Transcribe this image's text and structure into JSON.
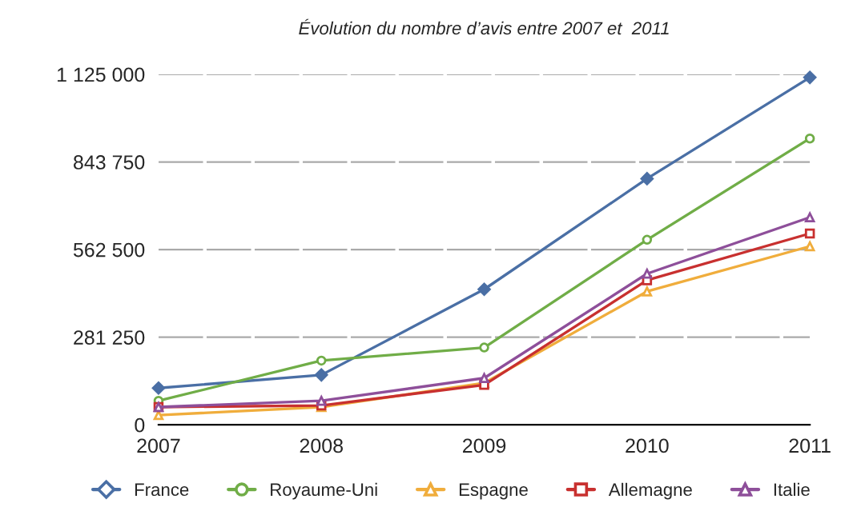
{
  "chart_data": {
    "type": "line",
    "title": "Évolution du nombre d’avis entre 2007 et  2011",
    "categories": [
      "2007",
      "2008",
      "2009",
      "2010",
      "2011"
    ],
    "series": [
      {
        "name": "France",
        "color": "#4a6fa5",
        "marker": "diamond",
        "values": [
          118000,
          160000,
          435000,
          790000,
          1115000
        ]
      },
      {
        "name": "Royaume-Uni",
        "color": "#70ad47",
        "marker": "circle",
        "values": [
          77000,
          206000,
          248000,
          594000,
          919000
        ]
      },
      {
        "name": "Espagne",
        "color": "#f0ad3c",
        "marker": "triangle",
        "values": [
          31000,
          57000,
          134000,
          428000,
          573000
        ]
      },
      {
        "name": "Allemagne",
        "color": "#c8302f",
        "marker": "square",
        "values": [
          57000,
          62000,
          128000,
          464000,
          614000
        ]
      },
      {
        "name": "Italie",
        "color": "#8e4f9a",
        "marker": "triangle",
        "values": [
          57000,
          77000,
          150000,
          485000,
          666000
        ]
      }
    ],
    "ylim": [
      0,
      1125000
    ],
    "yticks": [
      0,
      {
        "value": 281250,
        "label": "281 250"
      },
      {
        "value": 562500,
        "label": "562 500"
      },
      {
        "value": 843750,
        "label": "843 750"
      },
      {
        "value": 1125000,
        "label": "1 125 000"
      }
    ],
    "grid": "y",
    "legend": "bottom"
  }
}
